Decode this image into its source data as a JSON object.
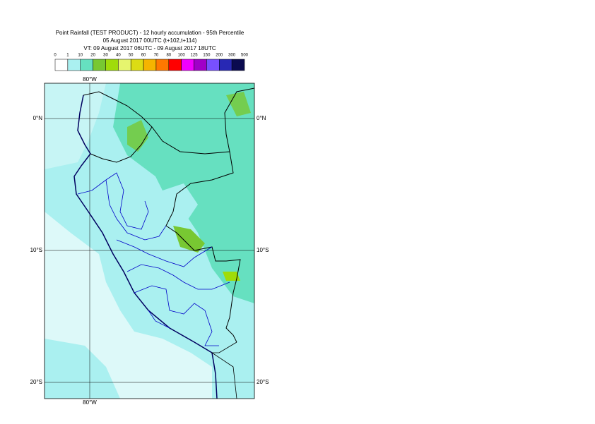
{
  "header": {
    "lines": [
      "Point Rainfall (TEST PRODUCT) - 12 hourly accumulation - 95th Percentile",
      "05 August 2017 00UTC (t+102,t+114)",
      "VT: 09 August 2017 06UTC - 09 August 2017 18UTC"
    ]
  },
  "legend": {
    "labels": [
      "0",
      "1",
      "10",
      "20",
      "30",
      "40",
      "50",
      "60",
      "70",
      "80",
      "100",
      "125",
      "150",
      "200",
      "300",
      "500"
    ],
    "colors": [
      "#ffffff",
      "#aaf0f0",
      "#66e0c0",
      "#78c832",
      "#a0dc0a",
      "#e6f56e",
      "#dcdc14",
      "#f5b400",
      "#ff7800",
      "#ff0000",
      "#f000ff",
      "#a000c8",
      "#7850ff",
      "#2828b4",
      "#0a0a50"
    ]
  },
  "map": {
    "lon_labels": [
      "80°W"
    ],
    "lat_labels": [
      "0°N",
      "10°S",
      "20°S"
    ]
  }
}
